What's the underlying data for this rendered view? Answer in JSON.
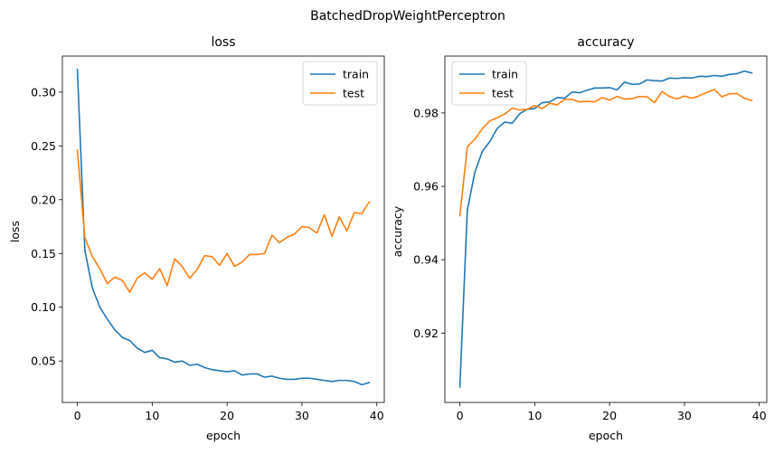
{
  "figure": {
    "suptitle": "BatchedDropWeightPerceptron"
  },
  "chart_data": [
    {
      "type": "line",
      "title": "loss",
      "xlabel": "epoch",
      "ylabel": "loss",
      "xlim": [
        -2,
        41
      ],
      "ylim": [
        0.0115,
        0.3335
      ],
      "xticks": [
        0,
        10,
        20,
        30,
        40
      ],
      "yticks": [
        0.05,
        0.1,
        0.15,
        0.2,
        0.25,
        0.3
      ],
      "ytick_labels": [
        "0.05",
        "0.10",
        "0.15",
        "0.20",
        "0.25",
        "0.30"
      ],
      "legend_position": "top-right",
      "x": [
        0,
        1,
        2,
        3,
        4,
        5,
        6,
        7,
        8,
        9,
        10,
        11,
        12,
        13,
        14,
        15,
        16,
        17,
        18,
        19,
        20,
        21,
        22,
        23,
        24,
        25,
        26,
        27,
        28,
        29,
        30,
        31,
        32,
        33,
        34,
        35,
        36,
        37,
        38,
        39
      ],
      "series": [
        {
          "name": "train",
          "color": "#1f77b4",
          "values": [
            0.321,
            0.153,
            0.118,
            0.1,
            0.089,
            0.079,
            0.072,
            0.069,
            0.062,
            0.058,
            0.06,
            0.053,
            0.052,
            0.049,
            0.05,
            0.046,
            0.047,
            0.044,
            0.042,
            0.041,
            0.04,
            0.041,
            0.037,
            0.038,
            0.038,
            0.035,
            0.036,
            0.034,
            0.033,
            0.033,
            0.034,
            0.034,
            0.033,
            0.032,
            0.031,
            0.032,
            0.032,
            0.031,
            0.028,
            0.03
          ]
        },
        {
          "name": "test",
          "color": "#ff7f0e",
          "values": [
            0.246,
            0.165,
            0.147,
            0.136,
            0.122,
            0.128,
            0.125,
            0.114,
            0.127,
            0.132,
            0.126,
            0.136,
            0.12,
            0.145,
            0.138,
            0.127,
            0.135,
            0.148,
            0.147,
            0.139,
            0.15,
            0.138,
            0.142,
            0.149,
            0.149,
            0.15,
            0.167,
            0.16,
            0.165,
            0.168,
            0.175,
            0.174,
            0.169,
            0.186,
            0.166,
            0.184,
            0.171,
            0.188,
            0.187,
            0.198
          ]
        }
      ]
    },
    {
      "type": "line",
      "title": "accuracy",
      "xlabel": "epoch",
      "ylabel": "accuracy",
      "xlim": [
        -2,
        41
      ],
      "ylim": [
        0.9011,
        0.9955
      ],
      "xticks": [
        0,
        10,
        20,
        30,
        40
      ],
      "yticks": [
        0.92,
        0.94,
        0.96,
        0.98
      ],
      "ytick_labels": [
        "0.92",
        "0.94",
        "0.96",
        "0.98"
      ],
      "legend_position": "top-left",
      "x": [
        0,
        1,
        2,
        3,
        4,
        5,
        6,
        7,
        8,
        9,
        10,
        11,
        12,
        13,
        14,
        15,
        16,
        17,
        18,
        19,
        20,
        21,
        22,
        23,
        24,
        25,
        26,
        27,
        28,
        29,
        30,
        31,
        32,
        33,
        34,
        35,
        36,
        37,
        38,
        39
      ],
      "series": [
        {
          "name": "train",
          "color": "#1f77b4",
          "values": [
            0.9053,
            0.9535,
            0.9638,
            0.9695,
            0.9722,
            0.9758,
            0.9775,
            0.9772,
            0.9798,
            0.981,
            0.9812,
            0.9828,
            0.983,
            0.9842,
            0.984,
            0.9857,
            0.9855,
            0.9862,
            0.9868,
            0.9868,
            0.9869,
            0.9863,
            0.9884,
            0.9878,
            0.9879,
            0.989,
            0.9888,
            0.9887,
            0.9895,
            0.9894,
            0.9896,
            0.9895,
            0.99,
            0.9899,
            0.9902,
            0.99,
            0.9905,
            0.9907,
            0.9914,
            0.9909
          ]
        },
        {
          "name": "test",
          "color": "#ff7f0e",
          "values": [
            0.952,
            0.9708,
            0.9728,
            0.9757,
            0.9778,
            0.9787,
            0.9797,
            0.9813,
            0.9808,
            0.981,
            0.982,
            0.9812,
            0.9826,
            0.9822,
            0.9837,
            0.9837,
            0.983,
            0.9832,
            0.983,
            0.9842,
            0.9835,
            0.9845,
            0.9838,
            0.9839,
            0.9845,
            0.9844,
            0.9828,
            0.9858,
            0.9845,
            0.9838,
            0.9846,
            0.984,
            0.9847,
            0.9856,
            0.9864,
            0.9844,
            0.9852,
            0.9853,
            0.984,
            0.9834
          ]
        }
      ]
    }
  ]
}
